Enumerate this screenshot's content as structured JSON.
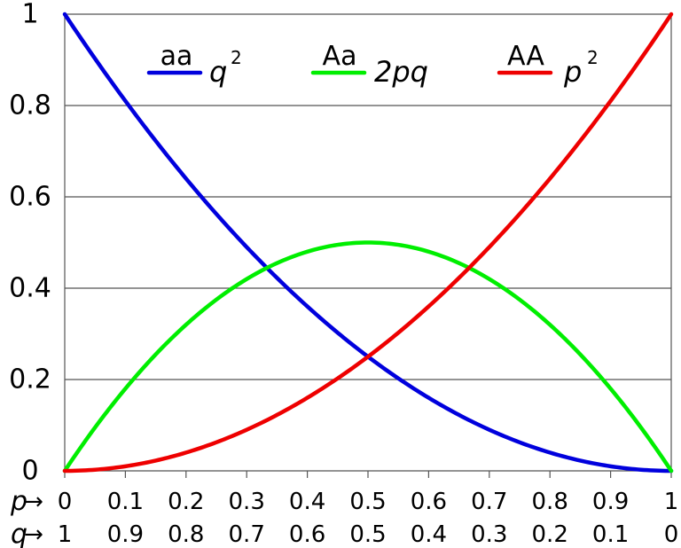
{
  "chart_data": {
    "type": "line",
    "title": "",
    "xlabel": "",
    "ylabel": "",
    "xlim": [
      0,
      1
    ],
    "ylim": [
      0,
      1
    ],
    "grid": "horizontal",
    "legend_position": "top",
    "yticks": [
      "0",
      "0.2",
      "0.4",
      "0.6",
      "0.8",
      "1"
    ],
    "y_tick_values": [
      0,
      0.2,
      0.4,
      0.6,
      0.8,
      1
    ],
    "x_tick_values": [
      0,
      0.1,
      0.2,
      0.3,
      0.4,
      0.5,
      0.6,
      0.7,
      0.8,
      0.9,
      1
    ],
    "x_rows": [
      {
        "label": "p",
        "arrow": "→",
        "ticks": [
          "0",
          "0.1",
          "0.2",
          "0.3",
          "0.4",
          "0.5",
          "0.6",
          "0.7",
          "0.8",
          "0.9",
          "1"
        ]
      },
      {
        "label": "q",
        "arrow": "→",
        "ticks": [
          "1",
          "0.9",
          "0.8",
          "0.7",
          "0.6",
          "0.5",
          "0.4",
          "0.3",
          "0.2",
          "0.1",
          "0"
        ]
      }
    ],
    "x": [
      0,
      0.1,
      0.2,
      0.3,
      0.4,
      0.5,
      0.6,
      0.7,
      0.8,
      0.9,
      1
    ],
    "series": [
      {
        "name": "aa",
        "expression": "q",
        "exponent": "2",
        "color": "#0000dd",
        "values": [
          1,
          0.81,
          0.64,
          0.49,
          0.36,
          0.25,
          0.16,
          0.09,
          0.04,
          0.01,
          0
        ]
      },
      {
        "name": "Aa",
        "expression": "2pq",
        "exponent": "",
        "color": "#00ee00",
        "values": [
          0,
          0.18,
          0.32,
          0.42,
          0.48,
          0.5,
          0.48,
          0.42,
          0.32,
          0.18,
          0
        ]
      },
      {
        "name": "AA",
        "expression": "p",
        "exponent": "2",
        "color": "#ee0000",
        "values": [
          0,
          0.01,
          0.04,
          0.09,
          0.16,
          0.25,
          0.36,
          0.49,
          0.64,
          0.81,
          1
        ]
      }
    ]
  }
}
